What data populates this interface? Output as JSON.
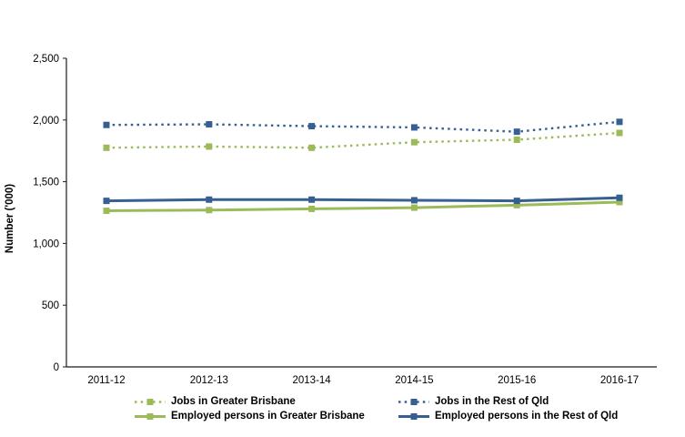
{
  "chart_data": {
    "type": "line",
    "title": "",
    "xlabel": "",
    "ylabel": "Number ('000)",
    "ylim": [
      0,
      2500
    ],
    "ytick_step": 500,
    "ytick_values": [
      0,
      500,
      1000,
      1500,
      2000,
      2500
    ],
    "ytick_labels": [
      "0",
      "500",
      "1,000",
      "1,500",
      "2,000",
      "2,500"
    ],
    "grid": false,
    "legend_position": "bottom",
    "categories": [
      "2011-12",
      "2012-13",
      "2013-14",
      "2014-15",
      "2015-16",
      "2016-17"
    ],
    "series": [
      {
        "name": "Jobs in Greater Brisbane",
        "color": "#9BBB59",
        "line_style": "dotted",
        "marker": "square",
        "values": [
          1775,
          1785,
          1775,
          1820,
          1840,
          1895
        ]
      },
      {
        "name": "Jobs in the Rest of Qld",
        "color": "#376092",
        "line_style": "dotted",
        "marker": "square",
        "values": [
          1960,
          1965,
          1950,
          1940,
          1905,
          1985
        ]
      },
      {
        "name": "Employed persons in Greater Brisbane",
        "color": "#9BBB59",
        "line_style": "solid",
        "marker": "square",
        "values": [
          1265,
          1270,
          1280,
          1290,
          1310,
          1335
        ]
      },
      {
        "name": "Employed persons in the Rest of Qld",
        "color": "#376092",
        "line_style": "solid",
        "marker": "square",
        "values": [
          1345,
          1355,
          1355,
          1350,
          1345,
          1370
        ]
      }
    ],
    "axis_color": "#1a1a1a",
    "text_color": "#000000"
  }
}
